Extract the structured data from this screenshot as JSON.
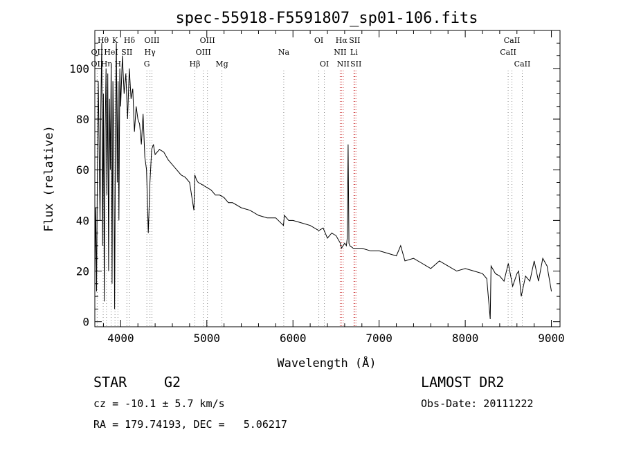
{
  "chart_data": {
    "type": "line",
    "title": "spec-55918-F5591807_sp01-106.fits",
    "xlabel": "Wavelength (Å)",
    "ylabel": "Flux (relative)",
    "xlim": [
      3700,
      9100
    ],
    "ylim": [
      -2,
      115
    ],
    "grid": false,
    "x_ticks": [
      4000,
      5000,
      6000,
      7000,
      8000,
      9000
    ],
    "y_ticks": [
      0,
      20,
      40,
      60,
      80,
      100
    ],
    "series": [
      {
        "values_note": "",
        "x": [
          3700,
          3710,
          3720,
          3730,
          3740,
          3750,
          3760,
          3770,
          3780,
          3790,
          3800,
          3810,
          3820,
          3830,
          3840,
          3850,
          3860,
          3870,
          3880,
          3890,
          3900,
          3910,
          3920,
          3930,
          3940,
          3950,
          3960,
          3970,
          3980,
          3990,
          4000,
          4020,
          4040,
          4060,
          4080,
          4100,
          4120,
          4140,
          4160,
          4180,
          4200,
          4220,
          4240,
          4260,
          4280,
          4300,
          4320,
          4340,
          4360,
          4380,
          4400,
          4450,
          4500,
          4550,
          4600,
          4650,
          4700,
          4750,
          4800,
          4850,
          4860,
          4880,
          4900,
          4950,
          5000,
          5050,
          5100,
          5150,
          5200,
          5250,
          5300,
          5400,
          5500,
          5600,
          5700,
          5800,
          5890,
          5900,
          5950,
          6000,
          6100,
          6200,
          6300,
          6350,
          6400,
          6450,
          6500,
          6550,
          6563,
          6600,
          6620,
          6630,
          6640,
          6650,
          6660,
          6700,
          6800,
          6900,
          7000,
          7100,
          7200,
          7250,
          7300,
          7400,
          7500,
          7600,
          7700,
          7800,
          7900,
          8000,
          8100,
          8200,
          8250,
          8290,
          8300,
          8350,
          8400,
          8450,
          8500,
          8550,
          8600,
          8620,
          8650,
          8700,
          8750,
          8800,
          8850,
          8900,
          8950,
          9000
        ],
        "y": [
          20,
          45,
          12,
          60,
          95,
          70,
          40,
          85,
          110,
          30,
          90,
          8,
          75,
          100,
          50,
          98,
          20,
          88,
          60,
          102,
          15,
          95,
          70,
          5,
          80,
          110,
          55,
          95,
          40,
          100,
          85,
          105,
          90,
          98,
          80,
          100,
          88,
          92,
          75,
          85,
          80,
          78,
          70,
          82,
          65,
          60,
          35,
          55,
          68,
          70,
          66,
          68,
          67,
          64,
          62,
          60,
          58,
          57,
          55,
          44,
          58,
          56,
          55,
          54,
          53,
          52,
          50,
          50,
          49,
          47,
          47,
          45,
          44,
          42,
          41,
          41,
          38,
          42,
          40,
          40,
          39,
          38,
          36,
          37,
          33,
          35,
          34,
          31,
          29,
          31,
          30,
          33,
          70,
          31,
          30,
          29,
          29,
          28,
          28,
          27,
          26,
          30,
          24,
          25,
          23,
          21,
          24,
          22,
          20,
          21,
          20,
          19,
          17,
          1,
          22,
          19,
          18,
          16,
          23,
          14,
          19,
          20,
          10,
          18,
          16,
          24,
          16,
          25,
          22,
          12
        ]
      }
    ],
    "line_labels": [
      {
        "text": "Hθ",
        "x": 3797,
        "row": 1
      },
      {
        "text": "K",
        "x": 3934,
        "row": 1
      },
      {
        "text": "Hδ",
        "x": 4102,
        "row": 1
      },
      {
        "text": "OIII",
        "x": 4363,
        "row": 1
      },
      {
        "text": "OIII",
        "x": 5007,
        "row": 1
      },
      {
        "text": "OI",
        "x": 6300,
        "row": 1
      },
      {
        "text": "Hα",
        "x": 6563,
        "row": 1
      },
      {
        "text": "SII",
        "x": 6716,
        "row": 1
      },
      {
        "text": "CaII",
        "x": 8542,
        "row": 1
      },
      {
        "text": "OII",
        "x": 3727,
        "row": 2
      },
      {
        "text": "HeI",
        "x": 3889,
        "row": 2
      },
      {
        "text": "SII",
        "x": 4072,
        "row": 2
      },
      {
        "text": "Hγ",
        "x": 4340,
        "row": 2
      },
      {
        "text": "OIII",
        "x": 4959,
        "row": 2
      },
      {
        "text": "Na",
        "x": 5893,
        "row": 2
      },
      {
        "text": "NII",
        "x": 6548,
        "row": 2
      },
      {
        "text": "Li",
        "x": 6708,
        "row": 2
      },
      {
        "text": "CaII",
        "x": 8498,
        "row": 2
      },
      {
        "text": "OII",
        "x": 3727,
        "row": 3
      },
      {
        "text": "Hη",
        "x": 3835,
        "row": 3
      },
      {
        "text": "H",
        "x": 3968,
        "row": 3
      },
      {
        "text": "G",
        "x": 4304,
        "row": 3
      },
      {
        "text": "Hβ",
        "x": 4861,
        "row": 3
      },
      {
        "text": "Mg",
        "x": 5175,
        "row": 3
      },
      {
        "text": "OI",
        "x": 6364,
        "row": 3
      },
      {
        "text": "NII",
        "x": 6583,
        "row": 3
      },
      {
        "text": "SII",
        "x": 6731,
        "row": 3
      },
      {
        "text": "CaII",
        "x": 8662,
        "row": 3
      }
    ],
    "line_markers": [
      3727,
      3797,
      3835,
      3889,
      3934,
      3968,
      4072,
      4102,
      4304,
      4340,
      4363,
      4861,
      4959,
      5007,
      5175,
      5893,
      6300,
      6364,
      6548,
      6563,
      6583,
      6708,
      6716,
      6731,
      8498,
      8542,
      8662
    ]
  },
  "footer": {
    "class_label": "STAR",
    "subclass": "G2",
    "survey": "LAMOST DR2",
    "cz": "cz = -10.1 ± 5.7 km/s",
    "obs_date": "Obs-Date: 20111222",
    "coords": "RA = 179.74193, DEC =   5.06217"
  },
  "colors": {
    "spectrum": "#000000",
    "marker": "#888888",
    "marker_red": "#cc3333"
  }
}
